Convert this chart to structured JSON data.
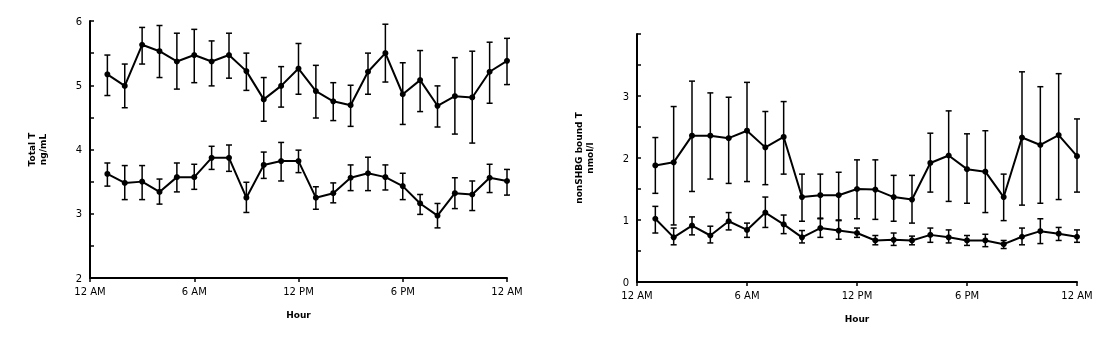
{
  "chart_data": [
    {
      "type": "line",
      "ylabel": "Total T\nng/mL",
      "xlabel": "Hour",
      "marker": "circle",
      "line_style": "solid",
      "grid": false,
      "categories": [
        "12 AM",
        null,
        null,
        null,
        null,
        null,
        "6 AM",
        null,
        null,
        null,
        null,
        null,
        "12 PM",
        null,
        null,
        null,
        null,
        null,
        "6 PM",
        null,
        null,
        null,
        null,
        null,
        "12 AM"
      ],
      "ylim": [
        2,
        6
      ],
      "yticks": [
        2,
        {
          "value": 2.5,
          "label": null
        },
        3,
        {
          "value": 3.5,
          "label": null
        },
        4,
        {
          "value": 4.5,
          "label": null
        },
        5,
        {
          "value": 5.5,
          "label": null
        },
        6
      ],
      "series": [
        {
          "color": "#000000",
          "values": [
            null,
            5.17,
            4.99,
            5.63,
            5.53,
            5.37,
            5.47,
            5.37,
            5.47,
            5.22,
            4.78,
            4.99,
            5.26,
            4.91,
            4.75,
            4.69,
            5.21,
            5.5,
            4.86,
            5.08,
            4.68,
            4.83,
            4.81,
            5.21,
            5.38
          ],
          "errors": [
            null,
            [
              4.84,
              5.47
            ],
            [
              4.65,
              5.33
            ],
            [
              5.33,
              5.9
            ],
            [
              5.12,
              5.93
            ],
            [
              4.94,
              5.81
            ],
            [
              5.04,
              5.87
            ],
            [
              4.99,
              5.69
            ],
            [
              5.11,
              5.81
            ],
            [
              4.92,
              5.5
            ],
            [
              4.44,
              5.12
            ],
            [
              4.66,
              5.29
            ],
            [
              4.86,
              5.65
            ],
            [
              4.49,
              5.31
            ],
            [
              4.45,
              5.04
            ],
            [
              4.36,
              5.0
            ],
            [
              4.86,
              5.5
            ],
            [
              5.05,
              5.95
            ],
            [
              4.39,
              5.35
            ],
            [
              4.59,
              5.54
            ],
            [
              4.35,
              4.99
            ],
            [
              4.24,
              5.43
            ],
            [
              4.1,
              5.53
            ],
            [
              4.72,
              5.67
            ],
            [
              5.01,
              5.73
            ]
          ]
        },
        {
          "color": "#000000",
          "values": [
            null,
            3.62,
            3.48,
            3.5,
            3.34,
            3.57,
            3.57,
            3.87,
            3.87,
            3.25,
            3.76,
            3.82,
            3.82,
            3.25,
            3.32,
            3.56,
            3.63,
            3.57,
            3.43,
            3.16,
            2.97,
            3.32,
            3.3,
            3.56,
            3.51
          ],
          "errors": [
            null,
            [
              3.43,
              3.79
            ],
            [
              3.22,
              3.75
            ],
            [
              3.22,
              3.75
            ],
            [
              3.15,
              3.54
            ],
            [
              3.34,
              3.79
            ],
            [
              3.38,
              3.77
            ],
            [
              3.69,
              4.05
            ],
            [
              3.66,
              4.07
            ],
            [
              3.02,
              3.49
            ],
            [
              3.55,
              3.96
            ],
            [
              3.51,
              4.11
            ],
            [
              3.64,
              3.99
            ],
            [
              3.07,
              3.42
            ],
            [
              3.17,
              3.48
            ],
            [
              3.36,
              3.76
            ],
            [
              3.36,
              3.88
            ],
            [
              3.37,
              3.76
            ],
            [
              3.22,
              3.63
            ],
            [
              2.99,
              3.3
            ],
            [
              2.78,
              3.16
            ],
            [
              3.08,
              3.56
            ],
            [
              3.05,
              3.51
            ],
            [
              3.33,
              3.77
            ],
            [
              3.29,
              3.69
            ]
          ]
        }
      ]
    },
    {
      "type": "line",
      "ylabel": "nonSHBG bound T\nnmol/l",
      "xlabel": "Hour",
      "marker": "circle",
      "line_style": "solid",
      "grid": false,
      "categories": [
        "12 AM",
        null,
        null,
        null,
        null,
        null,
        "6 AM",
        null,
        null,
        null,
        null,
        null,
        "12 PM",
        null,
        null,
        null,
        null,
        null,
        "6 PM",
        null,
        null,
        null,
        null,
        null,
        "12 AM"
      ],
      "ylim": [
        0,
        4
      ],
      "yticks": [
        0,
        {
          "value": 0.5,
          "label": null
        },
        1,
        {
          "value": 1.5,
          "label": null
        },
        2,
        {
          "value": 2.5,
          "label": null
        },
        3,
        {
          "value": 3.5,
          "label": null
        },
        {
          "value": 4,
          "label": null
        }
      ],
      "series": [
        {
          "color": "#000000",
          "values": [
            null,
            1.88,
            1.93,
            2.36,
            2.36,
            2.32,
            2.44,
            2.17,
            2.34,
            1.37,
            1.4,
            1.4,
            1.5,
            1.49,
            1.37,
            1.33,
            1.92,
            2.04,
            1.82,
            1.78,
            1.37,
            2.33,
            2.21,
            2.37,
            2.03
          ],
          "errors": [
            null,
            [
              1.43,
              2.33
            ],
            [
              0.92,
              2.83
            ],
            [
              1.46,
              3.24
            ],
            [
              1.66,
              3.05
            ],
            [
              1.59,
              2.98
            ],
            [
              1.62,
              3.22
            ],
            [
              1.57,
              2.75
            ],
            [
              1.74,
              2.91
            ],
            [
              0.98,
              1.74
            ],
            [
              1.03,
              1.74
            ],
            [
              1.0,
              1.77
            ],
            [
              1.02,
              1.97
            ],
            [
              1.01,
              1.97
            ],
            [
              0.98,
              1.72
            ],
            [
              0.95,
              1.72
            ],
            [
              1.45,
              2.4
            ],
            [
              1.3,
              2.76
            ],
            [
              1.27,
              2.39
            ],
            [
              1.12,
              2.44
            ],
            [
              0.99,
              1.74
            ],
            [
              1.24,
              3.39
            ],
            [
              1.27,
              3.15
            ],
            [
              1.33,
              3.36
            ],
            [
              1.45,
              2.63
            ]
          ]
        },
        {
          "color": "#000000",
          "values": [
            null,
            1.02,
            0.72,
            0.91,
            0.75,
            0.98,
            0.84,
            1.12,
            0.93,
            0.72,
            0.87,
            0.83,
            0.79,
            0.67,
            0.68,
            0.67,
            0.76,
            0.72,
            0.67,
            0.67,
            0.61,
            0.73,
            0.82,
            0.78,
            0.73
          ],
          "errors": [
            null,
            [
              0.79,
              1.22
            ],
            [
              0.6,
              0.87
            ],
            [
              0.76,
              1.05
            ],
            [
              0.63,
              0.9
            ],
            [
              0.84,
              1.12
            ],
            [
              0.72,
              0.95
            ],
            [
              0.88,
              1.37
            ],
            [
              0.78,
              1.08
            ],
            [
              0.63,
              0.83
            ],
            [
              0.72,
              1.02
            ],
            [
              0.69,
              0.99
            ],
            [
              0.72,
              0.87
            ],
            [
              0.6,
              0.75
            ],
            [
              0.59,
              0.79
            ],
            [
              0.6,
              0.74
            ],
            [
              0.64,
              0.87
            ],
            [
              0.63,
              0.84
            ],
            [
              0.59,
              0.75
            ],
            [
              0.57,
              0.77
            ],
            [
              0.54,
              0.67
            ],
            [
              0.6,
              0.87
            ],
            [
              0.62,
              1.02
            ],
            [
              0.67,
              0.88
            ],
            [
              0.64,
              0.84
            ]
          ]
        }
      ]
    }
  ]
}
